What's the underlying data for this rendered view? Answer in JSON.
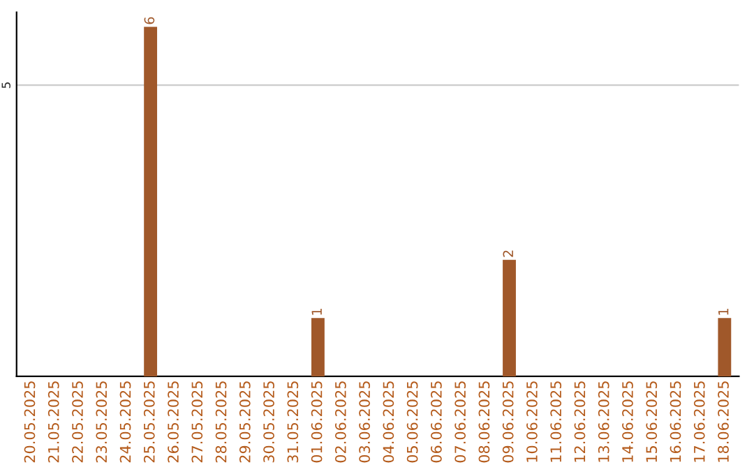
{
  "chart_data": {
    "type": "bar",
    "categories": [
      "20.05.2025",
      "21.05.2025",
      "22.05.2025",
      "23.05.2025",
      "24.05.2025",
      "25.05.2025",
      "26.05.2025",
      "27.05.2025",
      "28.05.2025",
      "29.05.2025",
      "30.05.2025",
      "31.05.2025",
      "01.06.2025",
      "02.06.2025",
      "03.06.2025",
      "04.06.2025",
      "05.06.2025",
      "06.06.2025",
      "07.06.2025",
      "08.06.2025",
      "09.06.2025",
      "10.06.2025",
      "11.06.2025",
      "12.06.2025",
      "13.06.2025",
      "14.06.2025",
      "15.06.2025",
      "16.06.2025",
      "17.06.2025",
      "18.06.2025"
    ],
    "values": [
      0,
      0,
      0,
      0,
      0,
      6,
      0,
      0,
      0,
      0,
      0,
      0,
      1,
      0,
      0,
      0,
      0,
      0,
      0,
      0,
      2,
      0,
      0,
      0,
      0,
      0,
      0,
      0,
      0,
      1
    ],
    "value_labels": [
      null,
      null,
      null,
      null,
      null,
      "6",
      null,
      null,
      null,
      null,
      null,
      null,
      "1",
      null,
      null,
      null,
      null,
      null,
      null,
      null,
      "2",
      null,
      null,
      null,
      null,
      null,
      null,
      null,
      null,
      "1"
    ],
    "color": "#a0582a",
    "ylim": [
      0,
      6.25
    ],
    "yticks": [
      5
    ],
    "grid": "y",
    "legend": false
  }
}
